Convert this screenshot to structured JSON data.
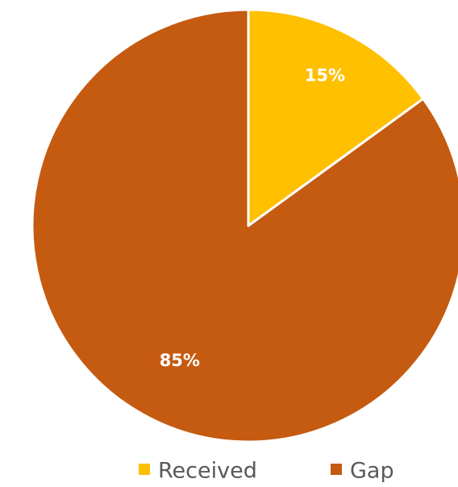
{
  "chart_data": {
    "type": "pie",
    "categories": [
      "Received",
      "Gap"
    ],
    "values": [
      15,
      85
    ],
    "labels": [
      "15%",
      "85%"
    ],
    "colors": [
      "#FFC000",
      "#C55A11"
    ],
    "start_angle_deg": 0,
    "direction": "clockwise",
    "legend": {
      "position": "bottom",
      "items": [
        "Received",
        "Gap"
      ]
    }
  }
}
